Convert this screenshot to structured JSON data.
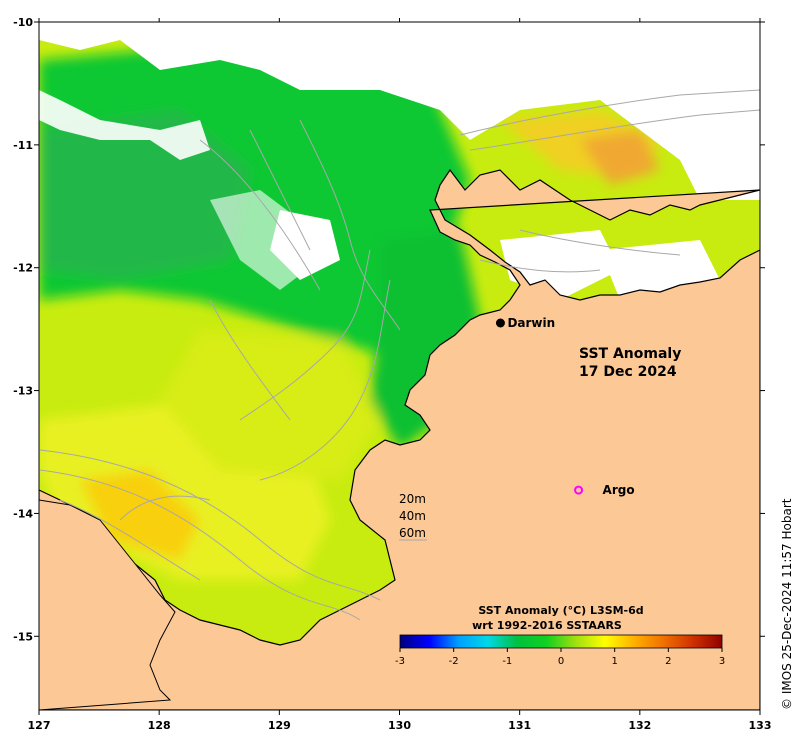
{
  "map": {
    "title_line1": "SST Anomaly",
    "title_line2": "17 Dec 2024",
    "lon_range": [
      127,
      133
    ],
    "lat_range": [
      -15.6,
      -10
    ],
    "lon_ticks": [
      127,
      128,
      129,
      130,
      131,
      132,
      133
    ],
    "lon_tick_labels": [
      "127",
      "128",
      "129",
      "130",
      "131",
      "132",
      "133"
    ],
    "lat_ticks": [
      -10,
      -11,
      -12,
      -13,
      -14,
      -15
    ],
    "lat_tick_labels": [
      "-10",
      "-11",
      "-12",
      "-13",
      "-14",
      "-15"
    ],
    "colors": {
      "land": "#fcc896",
      "coast": "#000000",
      "bathymetry": "#a8a8a8",
      "no_data": "#ffffff"
    }
  },
  "places": [
    {
      "name": "Darwin",
      "lon": 130.84,
      "lat": -12.45,
      "marker": "filled-circle",
      "color": "#000000"
    },
    {
      "name": "Argo",
      "lon": 131.49,
      "lat": -13.81,
      "marker": "open-circle",
      "color": "#ff00ff"
    }
  ],
  "depth_legend": {
    "items": [
      "20m",
      "40m",
      "60m"
    ]
  },
  "colorbar": {
    "title_line1": "SST Anomaly (°C) L3SM-6d",
    "title_line2": "wrt 1992-2016 SSTAARS",
    "min": -3,
    "max": 3,
    "ticks": [
      -3,
      -2,
      -1,
      0,
      1,
      2,
      3
    ],
    "tick_labels": [
      "-3",
      "-2",
      "-1",
      "0",
      "1",
      "2",
      "3"
    ],
    "stops": [
      "#00007f",
      "#0000ff",
      "#00a0ff",
      "#00d8e8",
      "#00c040",
      "#10d020",
      "#a0e010",
      "#ffff00",
      "#ffb000",
      "#f07000",
      "#d03000",
      "#900000"
    ]
  },
  "copyright": "© IMOS 25-Dec-2024 11:57 Hobart"
}
